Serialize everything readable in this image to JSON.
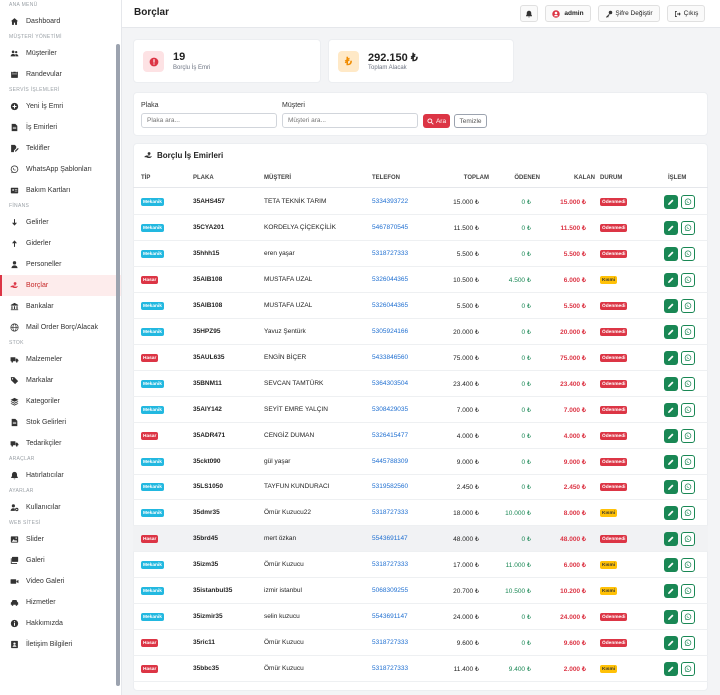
{
  "sidebar": {
    "sections": [
      {
        "title": "ANA MENÜ",
        "items": [
          {
            "label": "Dashboard",
            "icon": "home-icon"
          }
        ]
      },
      {
        "title": "MÜŞTERİ YÖNETİMİ",
        "items": [
          {
            "label": "Müşteriler",
            "icon": "users-icon"
          },
          {
            "label": "Randevular",
            "icon": "calendar-icon"
          }
        ]
      },
      {
        "title": "SERVİS İŞLEMLERİ",
        "items": [
          {
            "label": "Yeni İş Emri",
            "icon": "plus-circle-icon"
          },
          {
            "label": "İş Emirleri",
            "icon": "document-icon"
          },
          {
            "label": "Teklifler",
            "icon": "file-signature-icon"
          },
          {
            "label": "WhatsApp Şablonları",
            "icon": "whatsapp-icon"
          },
          {
            "label": "Bakım Kartları",
            "icon": "id-card-icon"
          }
        ]
      },
      {
        "title": "FİNANS",
        "items": [
          {
            "label": "Gelirler",
            "icon": "arrow-down-icon"
          },
          {
            "label": "Giderler",
            "icon": "arrow-up-icon"
          },
          {
            "label": "Personeller",
            "icon": "user-icon"
          },
          {
            "label": "Borçlar",
            "icon": "hand-holding-icon",
            "active": true
          },
          {
            "label": "Bankalar",
            "icon": "bank-icon"
          },
          {
            "label": "Mail Order Borç/Alacak",
            "icon": "globe-icon"
          }
        ]
      },
      {
        "title": "STOK",
        "items": [
          {
            "label": "Malzemeler",
            "icon": "truck-icon"
          },
          {
            "label": "Markalar",
            "icon": "tag-icon"
          },
          {
            "label": "Kategoriler",
            "icon": "layers-icon"
          },
          {
            "label": "Stok Gelirleri",
            "icon": "document-icon"
          },
          {
            "label": "Tedarikçiler",
            "icon": "truck-icon"
          }
        ]
      },
      {
        "title": "ARAÇLAR",
        "items": [
          {
            "label": "Hatırlatıcılar",
            "icon": "bell-icon"
          }
        ]
      },
      {
        "title": "AYARLAR",
        "items": [
          {
            "label": "Kullanıcılar",
            "icon": "user-cog-icon"
          }
        ]
      },
      {
        "title": "WEB SİTESİ",
        "items": [
          {
            "label": "Slider",
            "icon": "image-icon"
          },
          {
            "label": "Galeri",
            "icon": "images-icon"
          },
          {
            "label": "Video Galeri",
            "icon": "video-icon"
          },
          {
            "label": "Hizmetler",
            "icon": "car-icon"
          },
          {
            "label": "Hakkımızda",
            "icon": "info-icon"
          },
          {
            "label": "İletişim Bilgileri",
            "icon": "contact-icon"
          }
        ]
      }
    ]
  },
  "header": {
    "title": "Borçlar",
    "user": "admin",
    "change_password": "Şifre Değiştir",
    "logout": "Çıkış"
  },
  "stats": {
    "debt_orders": {
      "value": "19",
      "label": "Borçlu İş Emri"
    },
    "total_receivable": {
      "value": "292.150 ₺",
      "label": "Toplam Alacak"
    }
  },
  "filter": {
    "plate_label": "Plaka",
    "plate_placeholder": "Plaka ara...",
    "customer_label": "Müşteri",
    "customer_placeholder": "Müşteri ara...",
    "search_button": "Ara",
    "clear_button": "Temizle"
  },
  "table": {
    "title": "Borçlu İş Emirleri",
    "columns": [
      "TİP",
      "PLAKA",
      "MÜŞTERİ",
      "TELEFON",
      "TOPLAM",
      "ÖDENEN",
      "KALAN",
      "DURUM",
      "İŞLEM"
    ],
    "rows": [
      {
        "type": "Mekanik",
        "plate": "35AHS457",
        "customer": "TETA TEKNİK TARIM",
        "phone": "5334393722",
        "total": "15.000 ₺",
        "paid": "0 ₺",
        "remaining": "15.000 ₺",
        "status": "Ödenmedi"
      },
      {
        "type": "Mekanik",
        "plate": "35CYA201",
        "customer": "KORDELYA ÇİÇEKÇİLİK",
        "phone": "5467870545",
        "total": "11.500 ₺",
        "paid": "0 ₺",
        "remaining": "11.500 ₺",
        "status": "Ödenmedi"
      },
      {
        "type": "Mekanik",
        "plate": "35hhh15",
        "customer": "eren yaşar",
        "phone": "5318727333",
        "total": "5.500 ₺",
        "paid": "0 ₺",
        "remaining": "5.500 ₺",
        "status": "Ödenmedi"
      },
      {
        "type": "Hasar",
        "plate": "35AIB108",
        "customer": "MUSTAFA UZAL",
        "phone": "5326044365",
        "total": "10.500 ₺",
        "paid": "4.500 ₺",
        "remaining": "6.000 ₺",
        "status": "Kısmi"
      },
      {
        "type": "Mekanik",
        "plate": "35AIB108",
        "customer": "MUSTAFA UZAL",
        "phone": "5326044365",
        "total": "5.500 ₺",
        "paid": "0 ₺",
        "remaining": "5.500 ₺",
        "status": "Ödenmedi"
      },
      {
        "type": "Mekanik",
        "plate": "35HPZ95",
        "customer": "Yavuz Şentürk",
        "phone": "5305924166",
        "total": "20.000 ₺",
        "paid": "0 ₺",
        "remaining": "20.000 ₺",
        "status": "Ödenmedi"
      },
      {
        "type": "Hasar",
        "plate": "35AUL635",
        "customer": "ENGİN BİÇER",
        "phone": "5433846560",
        "total": "75.000 ₺",
        "paid": "0 ₺",
        "remaining": "75.000 ₺",
        "status": "Ödenmedi"
      },
      {
        "type": "Mekanik",
        "plate": "35BNM11",
        "customer": "SEVCAN TAMTÜRK",
        "phone": "5364303504",
        "total": "23.400 ₺",
        "paid": "0 ₺",
        "remaining": "23.400 ₺",
        "status": "Ödenmedi"
      },
      {
        "type": "Mekanik",
        "plate": "35AIY142",
        "customer": "SEYİT EMRE YALÇIN",
        "phone": "5308429035",
        "total": "7.000 ₺",
        "paid": "0 ₺",
        "remaining": "7.000 ₺",
        "status": "Ödenmedi"
      },
      {
        "type": "Hasar",
        "plate": "35ADR471",
        "customer": "CENGİZ DUMAN",
        "phone": "5326415477",
        "total": "4.000 ₺",
        "paid": "0 ₺",
        "remaining": "4.000 ₺",
        "status": "Ödenmedi"
      },
      {
        "type": "Mekanik",
        "plate": "35ckt090",
        "customer": "gül yaşar",
        "phone": "5445788309",
        "total": "9.000 ₺",
        "paid": "0 ₺",
        "remaining": "9.000 ₺",
        "status": "Ödenmedi"
      },
      {
        "type": "Mekanik",
        "plate": "35LS1050",
        "customer": "TAYFUN KUNDURACI",
        "phone": "5319582560",
        "total": "2.450 ₺",
        "paid": "0 ₺",
        "remaining": "2.450 ₺",
        "status": "Ödenmedi"
      },
      {
        "type": "Mekanik",
        "plate": "35dmr35",
        "customer": "Ömür Kuzucu22",
        "phone": "5318727333",
        "total": "18.000 ₺",
        "paid": "10.000 ₺",
        "remaining": "8.000 ₺",
        "status": "Kısmi"
      },
      {
        "type": "Hasar",
        "plate": "35brd45",
        "customer": "mert özkan",
        "phone": "5543691147",
        "total": "48.000 ₺",
        "paid": "0 ₺",
        "remaining": "48.000 ₺",
        "status": "Ödenmedi",
        "highlight": true
      },
      {
        "type": "Mekanik",
        "plate": "35izm35",
        "customer": "Ömür Kuzucu",
        "phone": "5318727333",
        "total": "17.000 ₺",
        "paid": "11.000 ₺",
        "remaining": "6.000 ₺",
        "status": "Kısmi"
      },
      {
        "type": "Mekanik",
        "plate": "35istanbul35",
        "customer": "izmir istanbul",
        "phone": "5068309255",
        "total": "20.700 ₺",
        "paid": "10.500 ₺",
        "remaining": "10.200 ₺",
        "status": "Kısmi"
      },
      {
        "type": "Mekanik",
        "plate": "35izmir35",
        "customer": "selin kuzucu",
        "phone": "5543691147",
        "total": "24.000 ₺",
        "paid": "0 ₺",
        "remaining": "24.000 ₺",
        "status": "Ödenmedi"
      },
      {
        "type": "Hasar",
        "plate": "35ric11",
        "customer": "Ömür Kuzucu",
        "phone": "5318727333",
        "total": "9.600 ₺",
        "paid": "0 ₺",
        "remaining": "9.600 ₺",
        "status": "Ödenmedi"
      },
      {
        "type": "Hasar",
        "plate": "35bbc35",
        "customer": "Ömür Kuzucu",
        "phone": "5318727333",
        "total": "11.400 ₺",
        "paid": "9.400 ₺",
        "remaining": "2.000 ₺",
        "status": "Kısmi"
      }
    ]
  },
  "colors": {
    "accent": "#dc3545",
    "mekanik": "#22b8e0",
    "hasar": "#dc3545",
    "partial": "#ffc107",
    "success": "#198754",
    "link": "#1f6fd1"
  }
}
